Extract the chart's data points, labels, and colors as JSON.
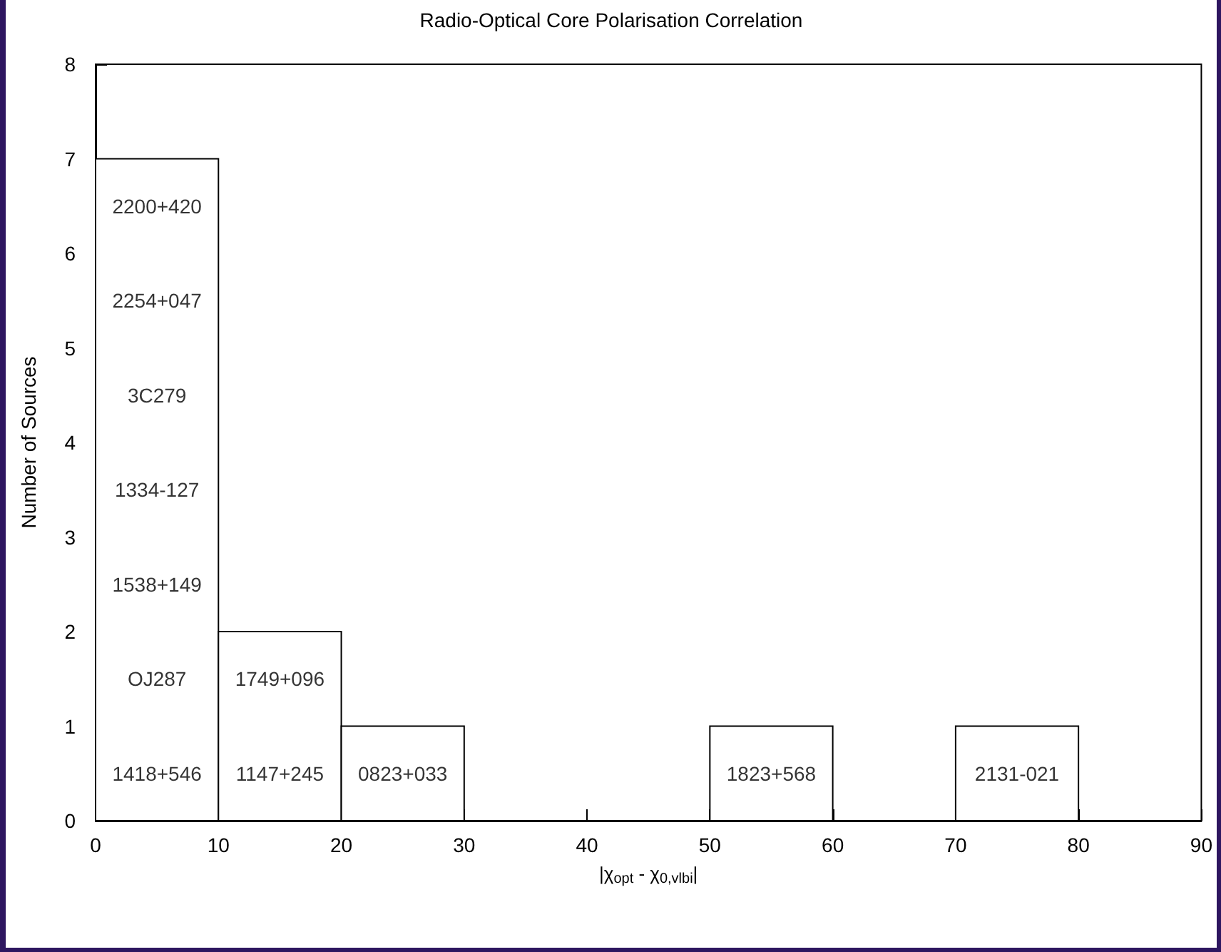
{
  "chart_data": {
    "type": "histogram",
    "title": "Radio-Optical Core Polarisation Correlation",
    "xlabel": "|χ$_{opt}$ - χ$_{0,vlbi}$|",
    "ylabel": "Number of Sources",
    "bins": [
      0,
      10,
      20,
      30,
      40,
      50,
      60,
      70,
      80,
      90
    ],
    "values": [
      7,
      2,
      1,
      0,
      0,
      1,
      0,
      1,
      0
    ],
    "color": "#ffffff",
    "xlim": [
      0,
      90
    ],
    "xticks": [
      0,
      10,
      20,
      30,
      40,
      50,
      60,
      70,
      80,
      90
    ],
    "ylim": [
      0,
      8
    ],
    "yticks": [
      0,
      1,
      2,
      3,
      4,
      5,
      6,
      7,
      8
    ],
    "grid": false,
    "legend": false,
    "annotations": [
      "2200+420",
      "2254+047",
      "3C279",
      "1334-127",
      "1538+149",
      "OJ287",
      "1418+546",
      "1749+096",
      "1147+245",
      "0823+033",
      "1823+568",
      "2131-021"
    ]
  }
}
